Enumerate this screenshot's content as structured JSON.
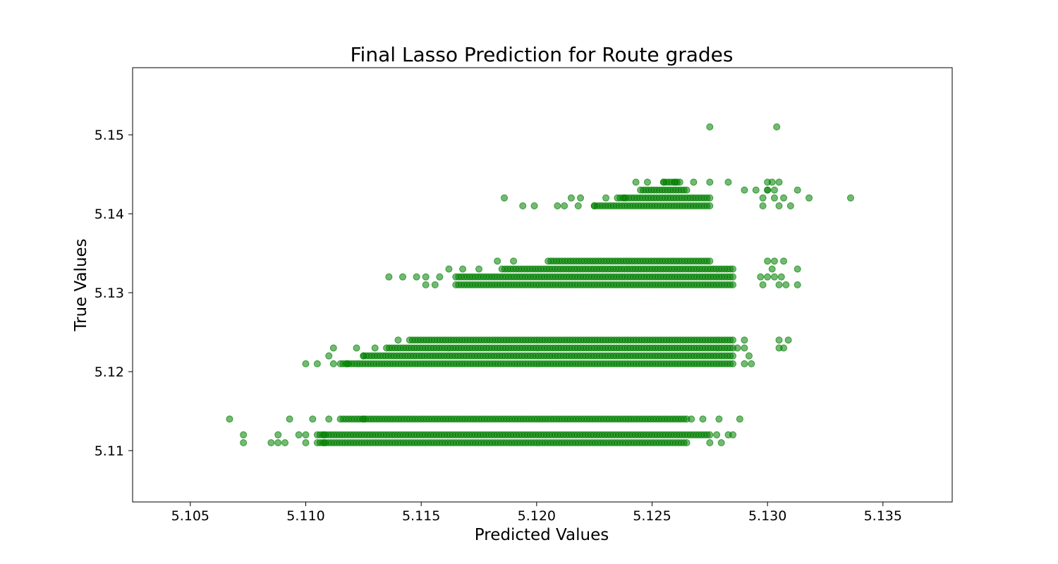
{
  "chart_data": {
    "type": "scatter",
    "title": "Final Lasso Prediction for Route grades",
    "xlabel": "Predicted Values",
    "ylabel": "True Values",
    "xlim": [
      5.1025,
      5.138
    ],
    "ylim": [
      5.1035,
      5.1585
    ],
    "x_ticks": [
      "5.105",
      "5.110",
      "5.115",
      "5.120",
      "5.125",
      "5.130",
      "5.135"
    ],
    "y_ticks": [
      "5.11",
      "5.12",
      "5.13",
      "5.14",
      "5.15"
    ],
    "grid": false,
    "legend": "none",
    "marker_color": "#008000",
    "marker_alpha": 0.55,
    "y_levels": [
      5.111,
      5.112,
      5.114,
      5.121,
      5.122,
      5.123,
      5.124,
      5.131,
      5.132,
      5.133,
      5.134,
      5.141,
      5.142,
      5.143,
      5.144,
      5.151
    ],
    "dense_ranges": [
      {
        "y": 5.111,
        "x_from": 5.1105,
        "x_to": 5.1265
      },
      {
        "y": 5.112,
        "x_from": 5.1105,
        "x_to": 5.1275
      },
      {
        "y": 5.114,
        "x_from": 5.1115,
        "x_to": 5.1265
      },
      {
        "y": 5.121,
        "x_from": 5.1115,
        "x_to": 5.1285
      },
      {
        "y": 5.122,
        "x_from": 5.1125,
        "x_to": 5.1285
      },
      {
        "y": 5.123,
        "x_from": 5.1135,
        "x_to": 5.1285
      },
      {
        "y": 5.124,
        "x_from": 5.1145,
        "x_to": 5.1285
      },
      {
        "y": 5.131,
        "x_from": 5.1165,
        "x_to": 5.1285
      },
      {
        "y": 5.132,
        "x_from": 5.1165,
        "x_to": 5.1285
      },
      {
        "y": 5.133,
        "x_from": 5.1185,
        "x_to": 5.1285
      },
      {
        "y": 5.134,
        "x_from": 5.1205,
        "x_to": 5.1275
      },
      {
        "y": 5.141,
        "x_from": 5.1225,
        "x_to": 5.1275
      },
      {
        "y": 5.142,
        "x_from": 5.1235,
        "x_to": 5.1275
      },
      {
        "y": 5.143,
        "x_from": 5.1245,
        "x_to": 5.1265
      },
      {
        "y": 5.144,
        "x_from": 5.1255,
        "x_to": 5.1262
      }
    ],
    "points": [
      [
        5.1067,
        5.114
      ],
      [
        5.1073,
        5.112
      ],
      [
        5.1073,
        5.111
      ],
      [
        5.1085,
        5.111
      ],
      [
        5.1088,
        5.111
      ],
      [
        5.1088,
        5.112
      ],
      [
        5.1093,
        5.114
      ],
      [
        5.1091,
        5.111
      ],
      [
        5.1097,
        5.112
      ],
      [
        5.11,
        5.112
      ],
      [
        5.11,
        5.111
      ],
      [
        5.1103,
        5.114
      ],
      [
        5.1108,
        5.111
      ],
      [
        5.1108,
        5.112
      ],
      [
        5.111,
        5.114
      ],
      [
        5.1125,
        5.114
      ],
      [
        5.1267,
        5.114
      ],
      [
        5.1272,
        5.114
      ],
      [
        5.1279,
        5.114
      ],
      [
        5.1288,
        5.114
      ],
      [
        5.1275,
        5.111
      ],
      [
        5.128,
        5.111
      ],
      [
        5.1278,
        5.112
      ],
      [
        5.1285,
        5.112
      ],
      [
        5.1283,
        5.112
      ],
      [
        5.11,
        5.121
      ],
      [
        5.1105,
        5.121
      ],
      [
        5.111,
        5.122
      ],
      [
        5.1112,
        5.123
      ],
      [
        5.1112,
        5.121
      ],
      [
        5.1118,
        5.121
      ],
      [
        5.1122,
        5.123
      ],
      [
        5.1125,
        5.122
      ],
      [
        5.113,
        5.123
      ],
      [
        5.114,
        5.124
      ],
      [
        5.129,
        5.124
      ],
      [
        5.1287,
        5.123
      ],
      [
        5.129,
        5.123
      ],
      [
        5.129,
        5.121
      ],
      [
        5.1293,
        5.121
      ],
      [
        5.1292,
        5.122
      ],
      [
        5.1305,
        5.124
      ],
      [
        5.1309,
        5.124
      ],
      [
        5.1305,
        5.123
      ],
      [
        5.1307,
        5.123
      ],
      [
        5.1136,
        5.132
      ],
      [
        5.1142,
        5.132
      ],
      [
        5.1148,
        5.132
      ],
      [
        5.1152,
        5.131
      ],
      [
        5.1152,
        5.132
      ],
      [
        5.1156,
        5.131
      ],
      [
        5.1158,
        5.132
      ],
      [
        5.1162,
        5.133
      ],
      [
        5.1168,
        5.133
      ],
      [
        5.1175,
        5.133
      ],
      [
        5.1183,
        5.134
      ],
      [
        5.119,
        5.134
      ],
      [
        5.13,
        5.134
      ],
      [
        5.1303,
        5.134
      ],
      [
        5.1307,
        5.134
      ],
      [
        5.1302,
        5.133
      ],
      [
        5.1313,
        5.133
      ],
      [
        5.1297,
        5.132
      ],
      [
        5.1303,
        5.132
      ],
      [
        5.1306,
        5.132
      ],
      [
        5.1298,
        5.131
      ],
      [
        5.1305,
        5.131
      ],
      [
        5.13,
        5.132
      ],
      [
        5.1308,
        5.131
      ],
      [
        5.1313,
        5.131
      ],
      [
        5.1186,
        5.142
      ],
      [
        5.1194,
        5.141
      ],
      [
        5.1199,
        5.141
      ],
      [
        5.1209,
        5.141
      ],
      [
        5.1212,
        5.141
      ],
      [
        5.1215,
        5.142
      ],
      [
        5.1219,
        5.142
      ],
      [
        5.1218,
        5.141
      ],
      [
        5.1225,
        5.141
      ],
      [
        5.123,
        5.142
      ],
      [
        5.1238,
        5.142
      ],
      [
        5.1243,
        5.144
      ],
      [
        5.1248,
        5.144
      ],
      [
        5.1255,
        5.144
      ],
      [
        5.126,
        5.144
      ],
      [
        5.1268,
        5.144
      ],
      [
        5.1275,
        5.144
      ],
      [
        5.1283,
        5.144
      ],
      [
        5.129,
        5.143
      ],
      [
        5.1295,
        5.143
      ],
      [
        5.13,
        5.143
      ],
      [
        5.13,
        5.144
      ],
      [
        5.1302,
        5.144
      ],
      [
        5.1305,
        5.144
      ],
      [
        5.1298,
        5.141
      ],
      [
        5.1305,
        5.141
      ],
      [
        5.131,
        5.141
      ],
      [
        5.1298,
        5.142
      ],
      [
        5.1303,
        5.142
      ],
      [
        5.1307,
        5.142
      ],
      [
        5.1313,
        5.143
      ],
      [
        5.1318,
        5.142
      ],
      [
        5.13,
        5.143
      ],
      [
        5.1303,
        5.143
      ],
      [
        5.1336,
        5.142
      ],
      [
        5.1275,
        5.151
      ],
      [
        5.1304,
        5.151
      ]
    ]
  }
}
